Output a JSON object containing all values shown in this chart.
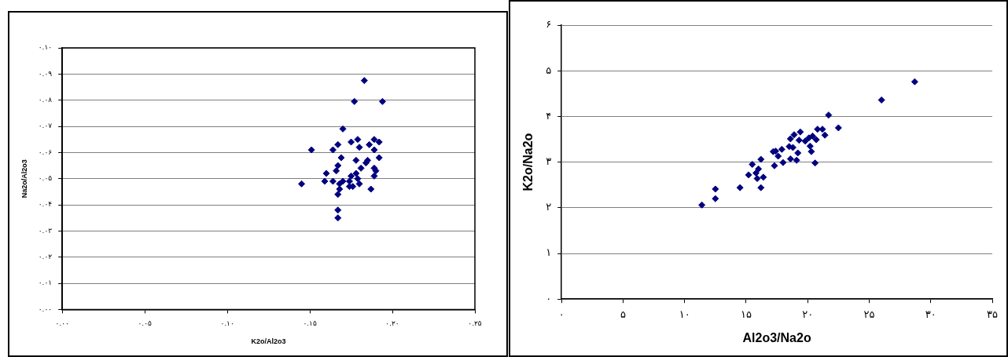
{
  "chart_data": [
    {
      "type": "scatter",
      "xlabel": "K2o/Al2o3",
      "ylabel": "Na2o/Al2o3",
      "marker": "diamond",
      "grid": "y",
      "legend": false,
      "xlim": [
        0,
        0.25
      ],
      "xticks": [
        {
          "value": 0,
          "label": "۰.۰۰"
        },
        {
          "value": 0.05,
          "label": "۰.۰۵"
        },
        {
          "value": 0.1,
          "label": "۰.۱۰"
        },
        {
          "value": 0.15,
          "label": "۰.۱۵"
        },
        {
          "value": 0.2,
          "label": "۰.۲۰"
        },
        {
          "value": 0.25,
          "label": "۰.۲۵"
        }
      ],
      "ylim": [
        0,
        0.1
      ],
      "yticks": [
        {
          "value": 0,
          "label": "۰.۰۰"
        },
        {
          "value": 0.01,
          "label": "۰.۰۱"
        },
        {
          "value": 0.02,
          "label": "۰.۰۲"
        },
        {
          "value": 0.03,
          "label": "۰.۰۳"
        },
        {
          "value": 0.04,
          "label": "۰.۰۴"
        },
        {
          "value": 0.05,
          "label": "۰.۰۵"
        },
        {
          "value": 0.06,
          "label": "۰.۰۶"
        },
        {
          "value": 0.07,
          "label": "۰.۰۷"
        },
        {
          "value": 0.08,
          "label": "۰.۰۸"
        },
        {
          "value": 0.09,
          "label": "۰.۰۹"
        },
        {
          "value": 0.1,
          "label": "۰.۱۰"
        }
      ],
      "series": [
        {
          "color": "#000080",
          "x": [
            0.183,
            0.177,
            0.194,
            0.17,
            0.151,
            0.145,
            0.167,
            0.167,
            0.167,
            0.164,
            0.175,
            0.179,
            0.18,
            0.186,
            0.189,
            0.192,
            0.189,
            0.192,
            0.185,
            0.169,
            0.178,
            0.167,
            0.166,
            0.16,
            0.159,
            0.164,
            0.168,
            0.168,
            0.167,
            0.174,
            0.176,
            0.18,
            0.178,
            0.181,
            0.184,
            0.189,
            0.19,
            0.189,
            0.187,
            0.175,
            0.179,
            0.174,
            0.17
          ],
          "values": [
            0.0875,
            0.0795,
            0.0795,
            0.069,
            0.061,
            0.048,
            0.035,
            0.038,
            0.063,
            0.061,
            0.064,
            0.065,
            0.062,
            0.063,
            0.065,
            0.064,
            0.061,
            0.058,
            0.057,
            0.058,
            0.057,
            0.055,
            0.053,
            0.052,
            0.049,
            0.049,
            0.048,
            0.046,
            0.044,
            0.049,
            0.047,
            0.048,
            0.052,
            0.054,
            0.056,
            0.054,
            0.053,
            0.051,
            0.046,
            0.051,
            0.05,
            0.047,
            0.049
          ]
        }
      ]
    },
    {
      "type": "scatter",
      "xlabel": "Al2o3/Na2o",
      "ylabel": "K2o/Na2o",
      "marker": "diamond",
      "grid": "y",
      "legend": false,
      "xlim": [
        0,
        35
      ],
      "xticks": [
        {
          "value": 0,
          "label": "۰"
        },
        {
          "value": 5,
          "label": "۵"
        },
        {
          "value": 10,
          "label": "۱۰"
        },
        {
          "value": 15,
          "label": "۱۵"
        },
        {
          "value": 20,
          "label": "۲۰"
        },
        {
          "value": 25,
          "label": "۲۵"
        },
        {
          "value": 30,
          "label": "۳۰"
        },
        {
          "value": 35,
          "label": "۳۵"
        }
      ],
      "ylim": [
        0,
        6
      ],
      "yticks": [
        {
          "value": 0,
          "label": "۰"
        },
        {
          "value": 1,
          "label": "۱"
        },
        {
          "value": 2,
          "label": "۲"
        },
        {
          "value": 3,
          "label": "۳"
        },
        {
          "value": 4,
          "label": "۴"
        },
        {
          "value": 5,
          "label": "۵"
        },
        {
          "value": 6,
          "label": "۶"
        }
      ],
      "series": [
        {
          "color": "#000080",
          "x": [
            28.7,
            26.0,
            21.7,
            22.5,
            11.4,
            12.5,
            12.5,
            14.5,
            16.2,
            15.2,
            15.9,
            16.4,
            15.5,
            16.0,
            16.2,
            15.8,
            17.3,
            18.0,
            18.6,
            19.1,
            17.2,
            17.6,
            17.9,
            18.5,
            18.8,
            19.2,
            18.6,
            18.9,
            19.4,
            19.3,
            19.8,
            20.1,
            20.4,
            20.2,
            20.3,
            20.7,
            20.6,
            20.8,
            21.2,
            21.4,
            17.4
          ],
          "values": [
            4.76,
            4.36,
            4.03,
            3.75,
            2.06,
            2.41,
            2.2,
            2.44,
            2.44,
            2.72,
            2.64,
            2.67,
            2.95,
            2.85,
            3.06,
            2.76,
            2.92,
            2.99,
            3.07,
            3.04,
            3.23,
            3.13,
            3.28,
            3.34,
            3.32,
            3.2,
            3.51,
            3.6,
            3.66,
            3.48,
            3.46,
            3.53,
            3.57,
            3.35,
            3.23,
            3.49,
            2.98,
            3.72,
            3.72,
            3.59,
            3.24
          ]
        }
      ]
    }
  ]
}
